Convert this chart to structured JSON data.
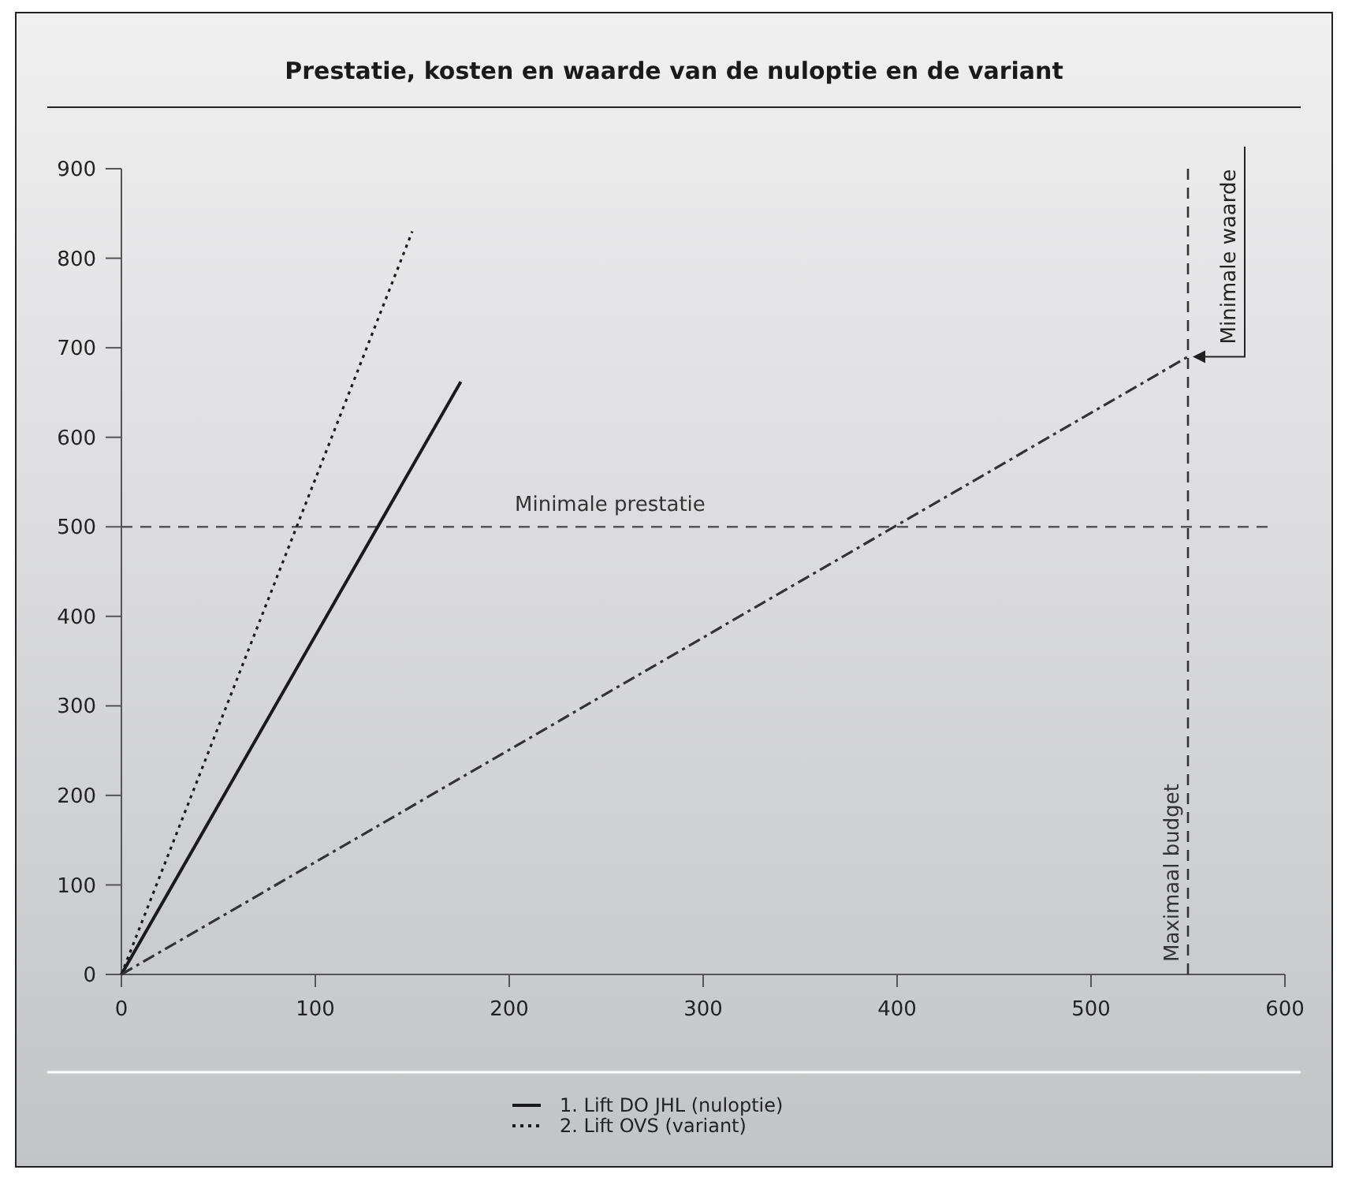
{
  "chart_data": {
    "type": "line",
    "title": "Prestatie, kosten en waarde van de nuloptie en de variant",
    "xlim": [
      0,
      600
    ],
    "xticks": [
      0,
      100,
      200,
      300,
      400,
      500,
      600
    ],
    "ylim": [
      0,
      900
    ],
    "yticks": [
      0,
      100,
      200,
      300,
      400,
      500,
      600,
      700,
      800,
      900
    ],
    "grid": false,
    "legend": "bottom",
    "marker": "none",
    "series": [
      {
        "name": "1. Lift DO JHL (nuloptie)",
        "color": "#1a1a1a",
        "line_style": "solid",
        "x": [
          0,
          175
        ],
        "values": [
          0,
          662
        ]
      },
      {
        "name": "2. Lift OVS (variant)",
        "color": "#1a1a1a",
        "line_style": "dotted",
        "x": [
          0,
          150
        ],
        "values": [
          0,
          830
        ]
      },
      {
        "color": "#333333",
        "line_style": "dashdot",
        "x": [
          0,
          550
        ],
        "values": [
          0,
          690
        ]
      }
    ],
    "ref_lines": [
      {
        "axis": "y",
        "value": 500,
        "label": "Minimale prestatie",
        "color": "#555555",
        "line_style": "dashed"
      },
      {
        "axis": "x",
        "value": 550,
        "label": "Maximaal budget",
        "color": "#333333",
        "line_style": "dashed"
      }
    ],
    "annotations": [
      {
        "text": "Minimale waarde",
        "x": 550,
        "y": 690
      }
    ]
  }
}
